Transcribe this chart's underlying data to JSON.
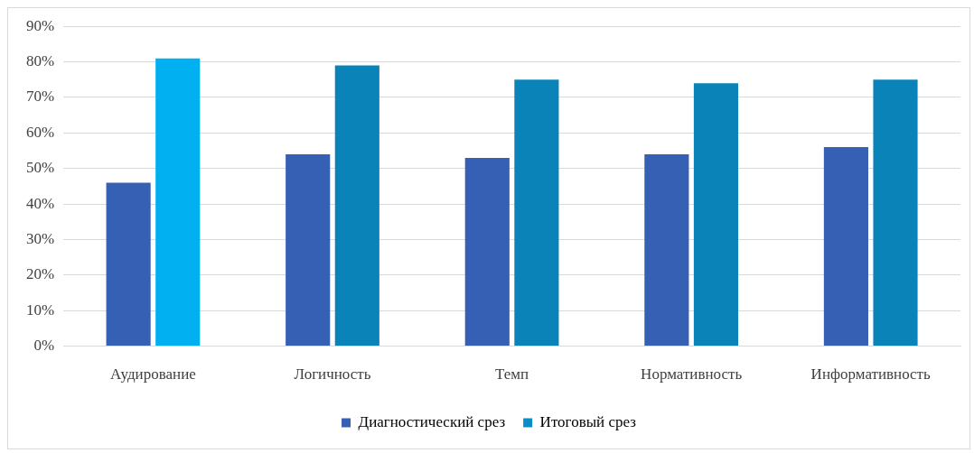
{
  "chart_data": {
    "type": "bar",
    "categories": [
      "Аудирование",
      "Логичность",
      "Темп",
      "Нормативность",
      "Информативность"
    ],
    "series": [
      {
        "name": "Диагностический срез",
        "color": "#3660b4",
        "values": [
          46,
          54,
          53,
          54,
          56
        ]
      },
      {
        "name": "Итоговый срез",
        "color": "#0a8cc4",
        "colors": [
          "#00b0f0",
          "#0a84b8",
          "#0a84b8",
          "#0a84b8",
          "#0a84b8"
        ],
        "values": [
          81,
          79,
          75,
          74,
          75
        ]
      }
    ],
    "ylim": [
      0,
      90
    ],
    "yticks": [
      {
        "value": 0,
        "label": "0%"
      },
      {
        "value": 10,
        "label": "10%"
      },
      {
        "value": 20,
        "label": "20%"
      },
      {
        "value": 30,
        "label": "30%"
      },
      {
        "value": 40,
        "label": "40%"
      },
      {
        "value": 50,
        "label": "50%"
      },
      {
        "value": 60,
        "label": "60%"
      },
      {
        "value": 70,
        "label": "70%"
      },
      {
        "value": 80,
        "label": "80%"
      },
      {
        "value": 90,
        "label": "90%"
      }
    ],
    "grid": "y",
    "legend": "bottom"
  }
}
